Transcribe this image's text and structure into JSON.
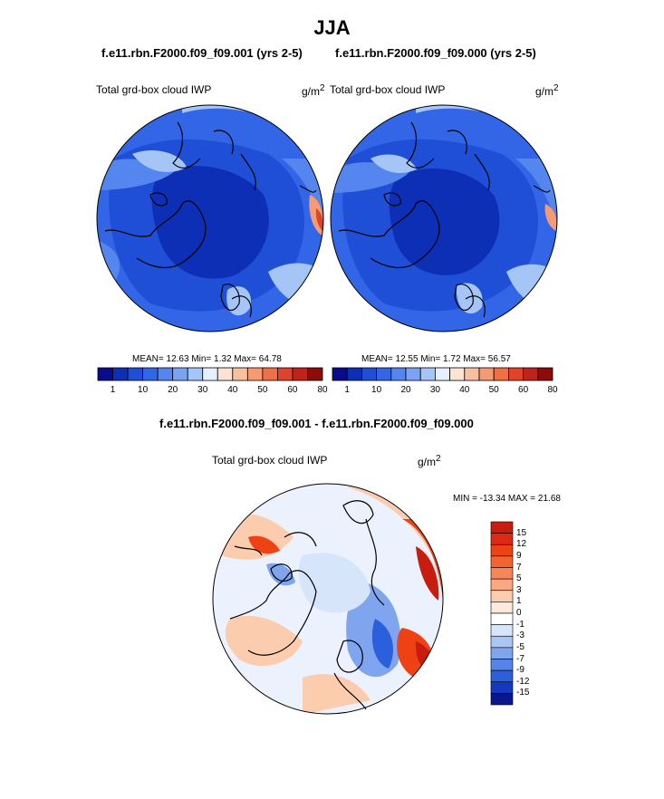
{
  "figure": {
    "title": "JJA",
    "panel_left_title": "f.e11.rbn.F2000.f09_f09.001 (yrs 2-5)",
    "panel_right_title": "f.e11.rbn.F2000.f09_f09.000 (yrs 2-5)",
    "diff_title": "f.e11.rbn.F2000.f09_f09.001 - f.e11.rbn.F2000.f09_f09.000"
  },
  "panels": {
    "left": {
      "variable": "Total grd-box cloud IWP",
      "unit_base": "g/m",
      "unit_exp": "2",
      "stats": "MEAN=  12.63  Min=   1.32  Max=  64.78"
    },
    "right": {
      "variable": "Total grd-box cloud IWP",
      "unit_base": "g/m",
      "unit_exp": "2",
      "stats": "MEAN=  12.55  Min=   1.72  Max=  56.57"
    },
    "diff": {
      "variable": "Total grd-box cloud IWP",
      "unit_base": "g/m",
      "unit_exp": "2",
      "minmax": "MIN = -13.34 MAX =  21.68"
    }
  },
  "colorbar_horizontal": {
    "colors": [
      "#0a0a8c",
      "#0c2fb5",
      "#1f4fd6",
      "#3366e6",
      "#5585ee",
      "#7aa3f3",
      "#a6c5f7",
      "#e6efff",
      "#fde3d3",
      "#f9bfa0",
      "#f59a72",
      "#ef6f46",
      "#e0432a",
      "#c0231a",
      "#8c0c0c"
    ],
    "labels": [
      "1",
      "10",
      "20",
      "30",
      "40",
      "50",
      "60",
      "80"
    ]
  },
  "colorbar_vertical": {
    "colors": [
      "#c81c0e",
      "#de2a12",
      "#ef4214",
      "#f46430",
      "#f7865a",
      "#f9a882",
      "#fcccae",
      "#fde8dc",
      "#ffffff",
      "#d7e5fb",
      "#a9c6f4",
      "#7ea5ee",
      "#5585e8",
      "#2c5fdc",
      "#1538c0",
      "#0b168e"
    ],
    "labels": [
      "15",
      "12",
      "9",
      "7",
      "5",
      "3",
      "1",
      "0",
      "-1",
      "-3",
      "-5",
      "-7",
      "-9",
      "-12",
      "-15"
    ]
  },
  "map_colors": {
    "deep": "#0c2fb5",
    "mid": "#1f4fd6",
    "base": "#3366e6",
    "light": "#5585ee",
    "pale": "#a6c5f7",
    "warm": "#f59a72",
    "hot": "#e0432a",
    "diff_pale_blue": "#d7e5fb",
    "diff_blue": "#7ea5ee",
    "diff_deep_blue": "#2c5fdc",
    "diff_pale_red": "#fcccae",
    "diff_red": "#ef4214",
    "diff_dark_red": "#c81c0e"
  }
}
